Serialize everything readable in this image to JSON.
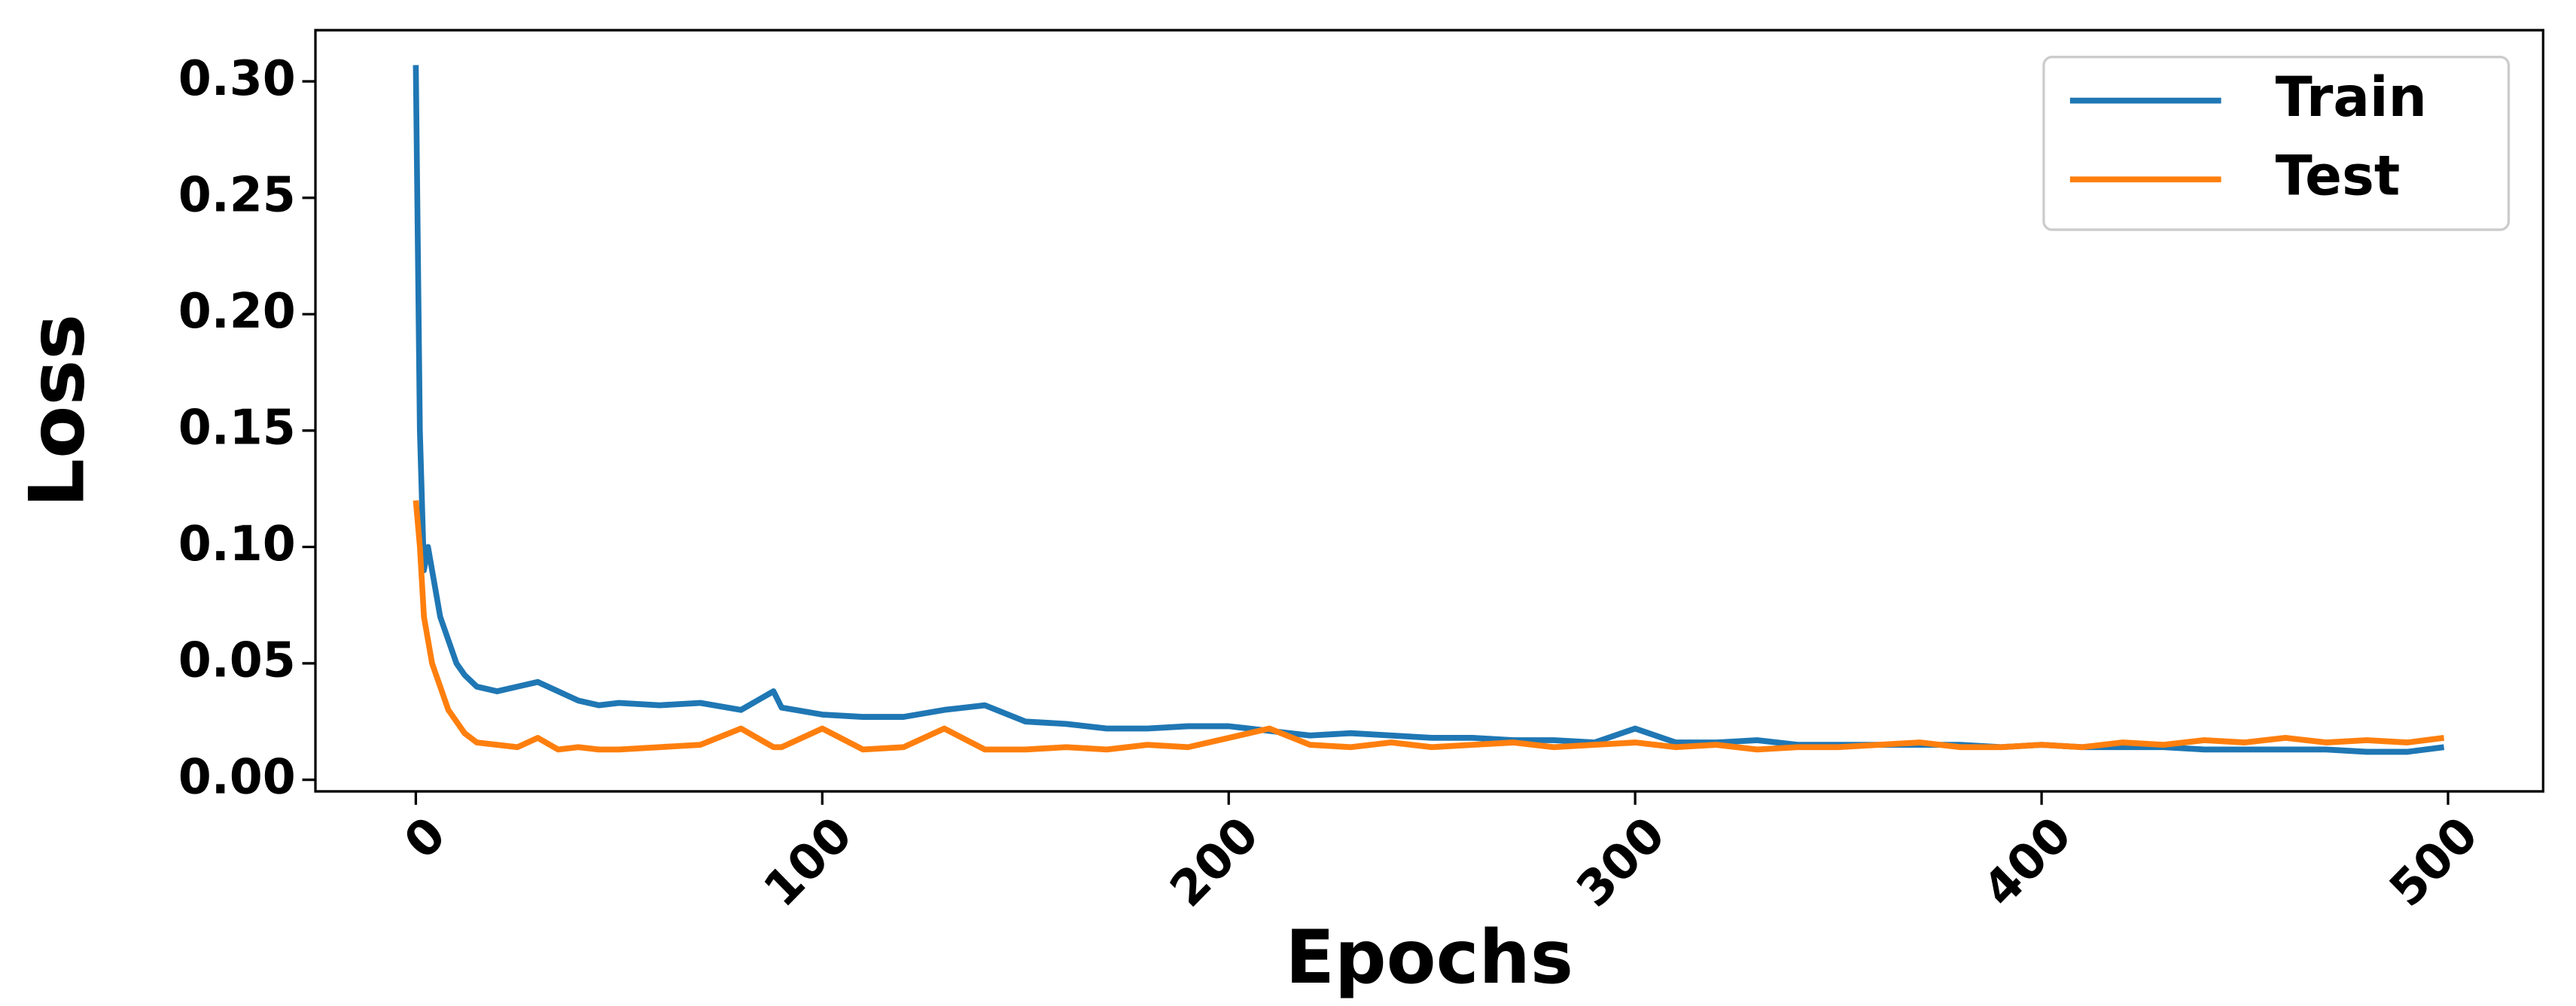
{
  "chart_data": {
    "type": "line",
    "x_label": "Epochs",
    "y_label": "Loss",
    "x": [
      0,
      1,
      2,
      3,
      4,
      5,
      6,
      8,
      10,
      12,
      15,
      20,
      25,
      30,
      35,
      40,
      45,
      50,
      60,
      70,
      80,
      88,
      90,
      100,
      110,
      120,
      130,
      140,
      150,
      160,
      170,
      180,
      190,
      200,
      210,
      220,
      230,
      240,
      250,
      260,
      270,
      280,
      290,
      300,
      310,
      320,
      330,
      340,
      350,
      360,
      370,
      380,
      390,
      400,
      410,
      420,
      430,
      440,
      450,
      460,
      470,
      480,
      490,
      499
    ],
    "series": [
      {
        "name": "Train",
        "color": "#1f77b4",
        "values": [
          0.307,
          0.15,
          0.09,
          0.1,
          0.09,
          0.08,
          0.07,
          0.06,
          0.05,
          0.045,
          0.04,
          0.038,
          0.04,
          0.042,
          0.038,
          0.034,
          0.032,
          0.033,
          0.032,
          0.033,
          0.03,
          0.038,
          0.031,
          0.028,
          0.027,
          0.027,
          0.03,
          0.032,
          0.025,
          0.024,
          0.022,
          0.022,
          0.023,
          0.023,
          0.021,
          0.019,
          0.02,
          0.019,
          0.018,
          0.018,
          0.017,
          0.017,
          0.016,
          0.022,
          0.016,
          0.016,
          0.017,
          0.015,
          0.015,
          0.015,
          0.015,
          0.015,
          0.014,
          0.015,
          0.014,
          0.014,
          0.014,
          0.013,
          0.013,
          0.013,
          0.013,
          0.012,
          0.012,
          0.014
        ]
      },
      {
        "name": "Test",
        "color": "#ff7f0e",
        "values": [
          0.12,
          0.1,
          0.07,
          0.06,
          0.05,
          0.045,
          0.04,
          0.03,
          0.025,
          0.02,
          0.016,
          0.015,
          0.014,
          0.018,
          0.013,
          0.014,
          0.013,
          0.013,
          0.014,
          0.015,
          0.022,
          0.014,
          0.014,
          0.022,
          0.013,
          0.014,
          0.022,
          0.013,
          0.013,
          0.014,
          0.013,
          0.015,
          0.014,
          0.018,
          0.022,
          0.015,
          0.014,
          0.016,
          0.014,
          0.015,
          0.016,
          0.014,
          0.015,
          0.016,
          0.014,
          0.015,
          0.013,
          0.014,
          0.014,
          0.015,
          0.016,
          0.014,
          0.014,
          0.015,
          0.014,
          0.016,
          0.015,
          0.017,
          0.016,
          0.018,
          0.016,
          0.017,
          0.016,
          0.018
        ]
      }
    ],
    "xlim": [
      -24.7,
      523.4
    ],
    "xticks": [
      0,
      100,
      200,
      300,
      400,
      500
    ],
    "ylim": [
      -0.005,
      0.322
    ],
    "yticks": [
      {
        "value": 0,
        "label": "0.00"
      },
      {
        "value": 0.05,
        "label": "0.05"
      },
      {
        "value": 0.1,
        "label": "0.10"
      },
      {
        "value": 0.15,
        "label": "0.15"
      },
      {
        "value": 0.2,
        "label": "0.20"
      },
      {
        "value": 0.25,
        "label": "0.25"
      },
      {
        "value": 0.3,
        "label": "0.30"
      }
    ],
    "legend": "upper right",
    "grid": false
  }
}
